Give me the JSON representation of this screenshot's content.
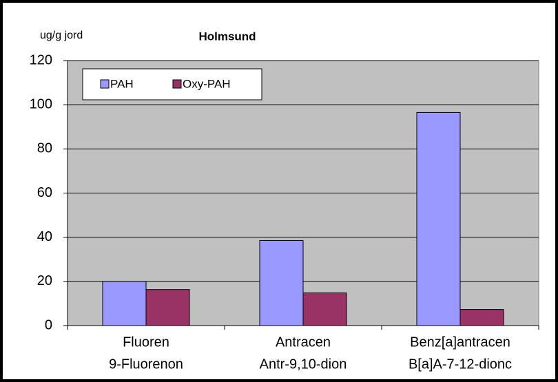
{
  "chart_data": {
    "type": "bar",
    "title": "Holmsund",
    "ylabel": "ug/g jord",
    "categories": [
      [
        "Fluoren",
        "9-Fluorenon"
      ],
      [
        "Antracen",
        "Antr-9,10-dion"
      ],
      [
        "Benz[a]antracen",
        "B[a]A-7-12-dionc"
      ]
    ],
    "series": [
      {
        "name": "PAH",
        "color": "#9999ff",
        "values": [
          20,
          38.5,
          96.5
        ]
      },
      {
        "name": "Oxy-PAH",
        "color": "#993366",
        "values": [
          16.3,
          14.8,
          7.3
        ]
      }
    ],
    "ylim": [
      0,
      120
    ],
    "yticks": [
      0,
      20,
      40,
      60,
      80,
      100,
      120
    ],
    "grid": true,
    "legend": "top-left"
  }
}
